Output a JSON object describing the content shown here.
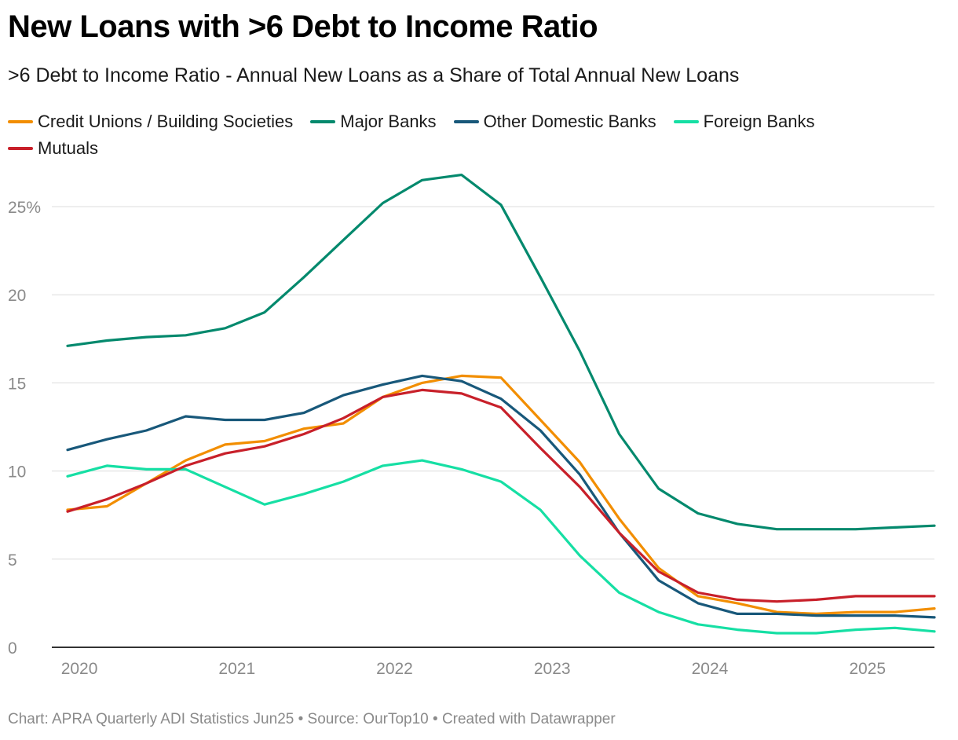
{
  "title": "New Loans with >6 Debt to Income Ratio",
  "subtitle": ">6 Debt to Income Ratio - Annual New Loans as a Share of Total Annual New Loans",
  "footer": "Chart: APRA Quarterly ADI Statistics Jun25 • Source: OurTop10 • Created with Datawrapper",
  "chart_data": {
    "type": "line",
    "title": "New Loans with >6 Debt to Income Ratio",
    "xlabel": "",
    "ylabel": "",
    "x": [
      "2019-12",
      "2020-03",
      "2020-06",
      "2020-09",
      "2020-12",
      "2021-03",
      "2021-06",
      "2021-09",
      "2021-12",
      "2022-03",
      "2022-06",
      "2022-09",
      "2022-12",
      "2023-03",
      "2023-06",
      "2023-09",
      "2023-12",
      "2024-03",
      "2024-06",
      "2024-09",
      "2024-12",
      "2025-03",
      "2025-06"
    ],
    "ylim": [
      0,
      27
    ],
    "yticks": [
      0,
      5,
      10,
      15,
      20,
      25
    ],
    "ytick_labels": [
      "0",
      "5",
      "10",
      "15",
      "20",
      "25%"
    ],
    "xticks": [
      "2020",
      "2021",
      "2022",
      "2023",
      "2024",
      "2025"
    ],
    "series": [
      {
        "name": "Credit Unions / Building Societies",
        "color": "#f28e00",
        "values": [
          7.8,
          8.0,
          9.3,
          10.6,
          11.5,
          11.7,
          12.4,
          12.7,
          14.2,
          15.0,
          15.4,
          15.3,
          12.9,
          10.5,
          7.3,
          4.5,
          2.9,
          2.5,
          2.0,
          1.9,
          2.0,
          2.0,
          2.2
        ]
      },
      {
        "name": "Major Banks",
        "color": "#03896d",
        "values": [
          17.1,
          17.4,
          17.6,
          17.7,
          18.1,
          19.0,
          21.0,
          23.1,
          25.2,
          26.5,
          26.8,
          25.1,
          21.0,
          16.8,
          12.1,
          9.0,
          7.6,
          7.0,
          6.7,
          6.7,
          6.7,
          6.8,
          6.9
        ]
      },
      {
        "name": "Other Domestic Banks",
        "color": "#18587a",
        "values": [
          11.2,
          11.8,
          12.3,
          13.1,
          12.9,
          12.9,
          13.3,
          14.3,
          14.9,
          15.4,
          15.1,
          14.1,
          12.3,
          9.8,
          6.5,
          3.8,
          2.5,
          1.9,
          1.9,
          1.8,
          1.8,
          1.8,
          1.7
        ]
      },
      {
        "name": "Foreign Banks",
        "color": "#16dfa4",
        "values": [
          9.7,
          10.3,
          10.1,
          10.1,
          9.1,
          8.1,
          8.7,
          9.4,
          10.3,
          10.6,
          10.1,
          9.4,
          7.8,
          5.2,
          3.1,
          2.0,
          1.3,
          1.0,
          0.8,
          0.8,
          1.0,
          1.1,
          0.9
        ]
      },
      {
        "name": "Mutuals",
        "color": "#c8202a",
        "values": [
          7.7,
          8.4,
          9.3,
          10.3,
          11.0,
          11.4,
          12.1,
          13.0,
          14.2,
          14.6,
          14.4,
          13.6,
          11.3,
          9.1,
          6.5,
          4.3,
          3.1,
          2.7,
          2.6,
          2.7,
          2.9,
          2.9,
          2.9
        ]
      }
    ]
  }
}
